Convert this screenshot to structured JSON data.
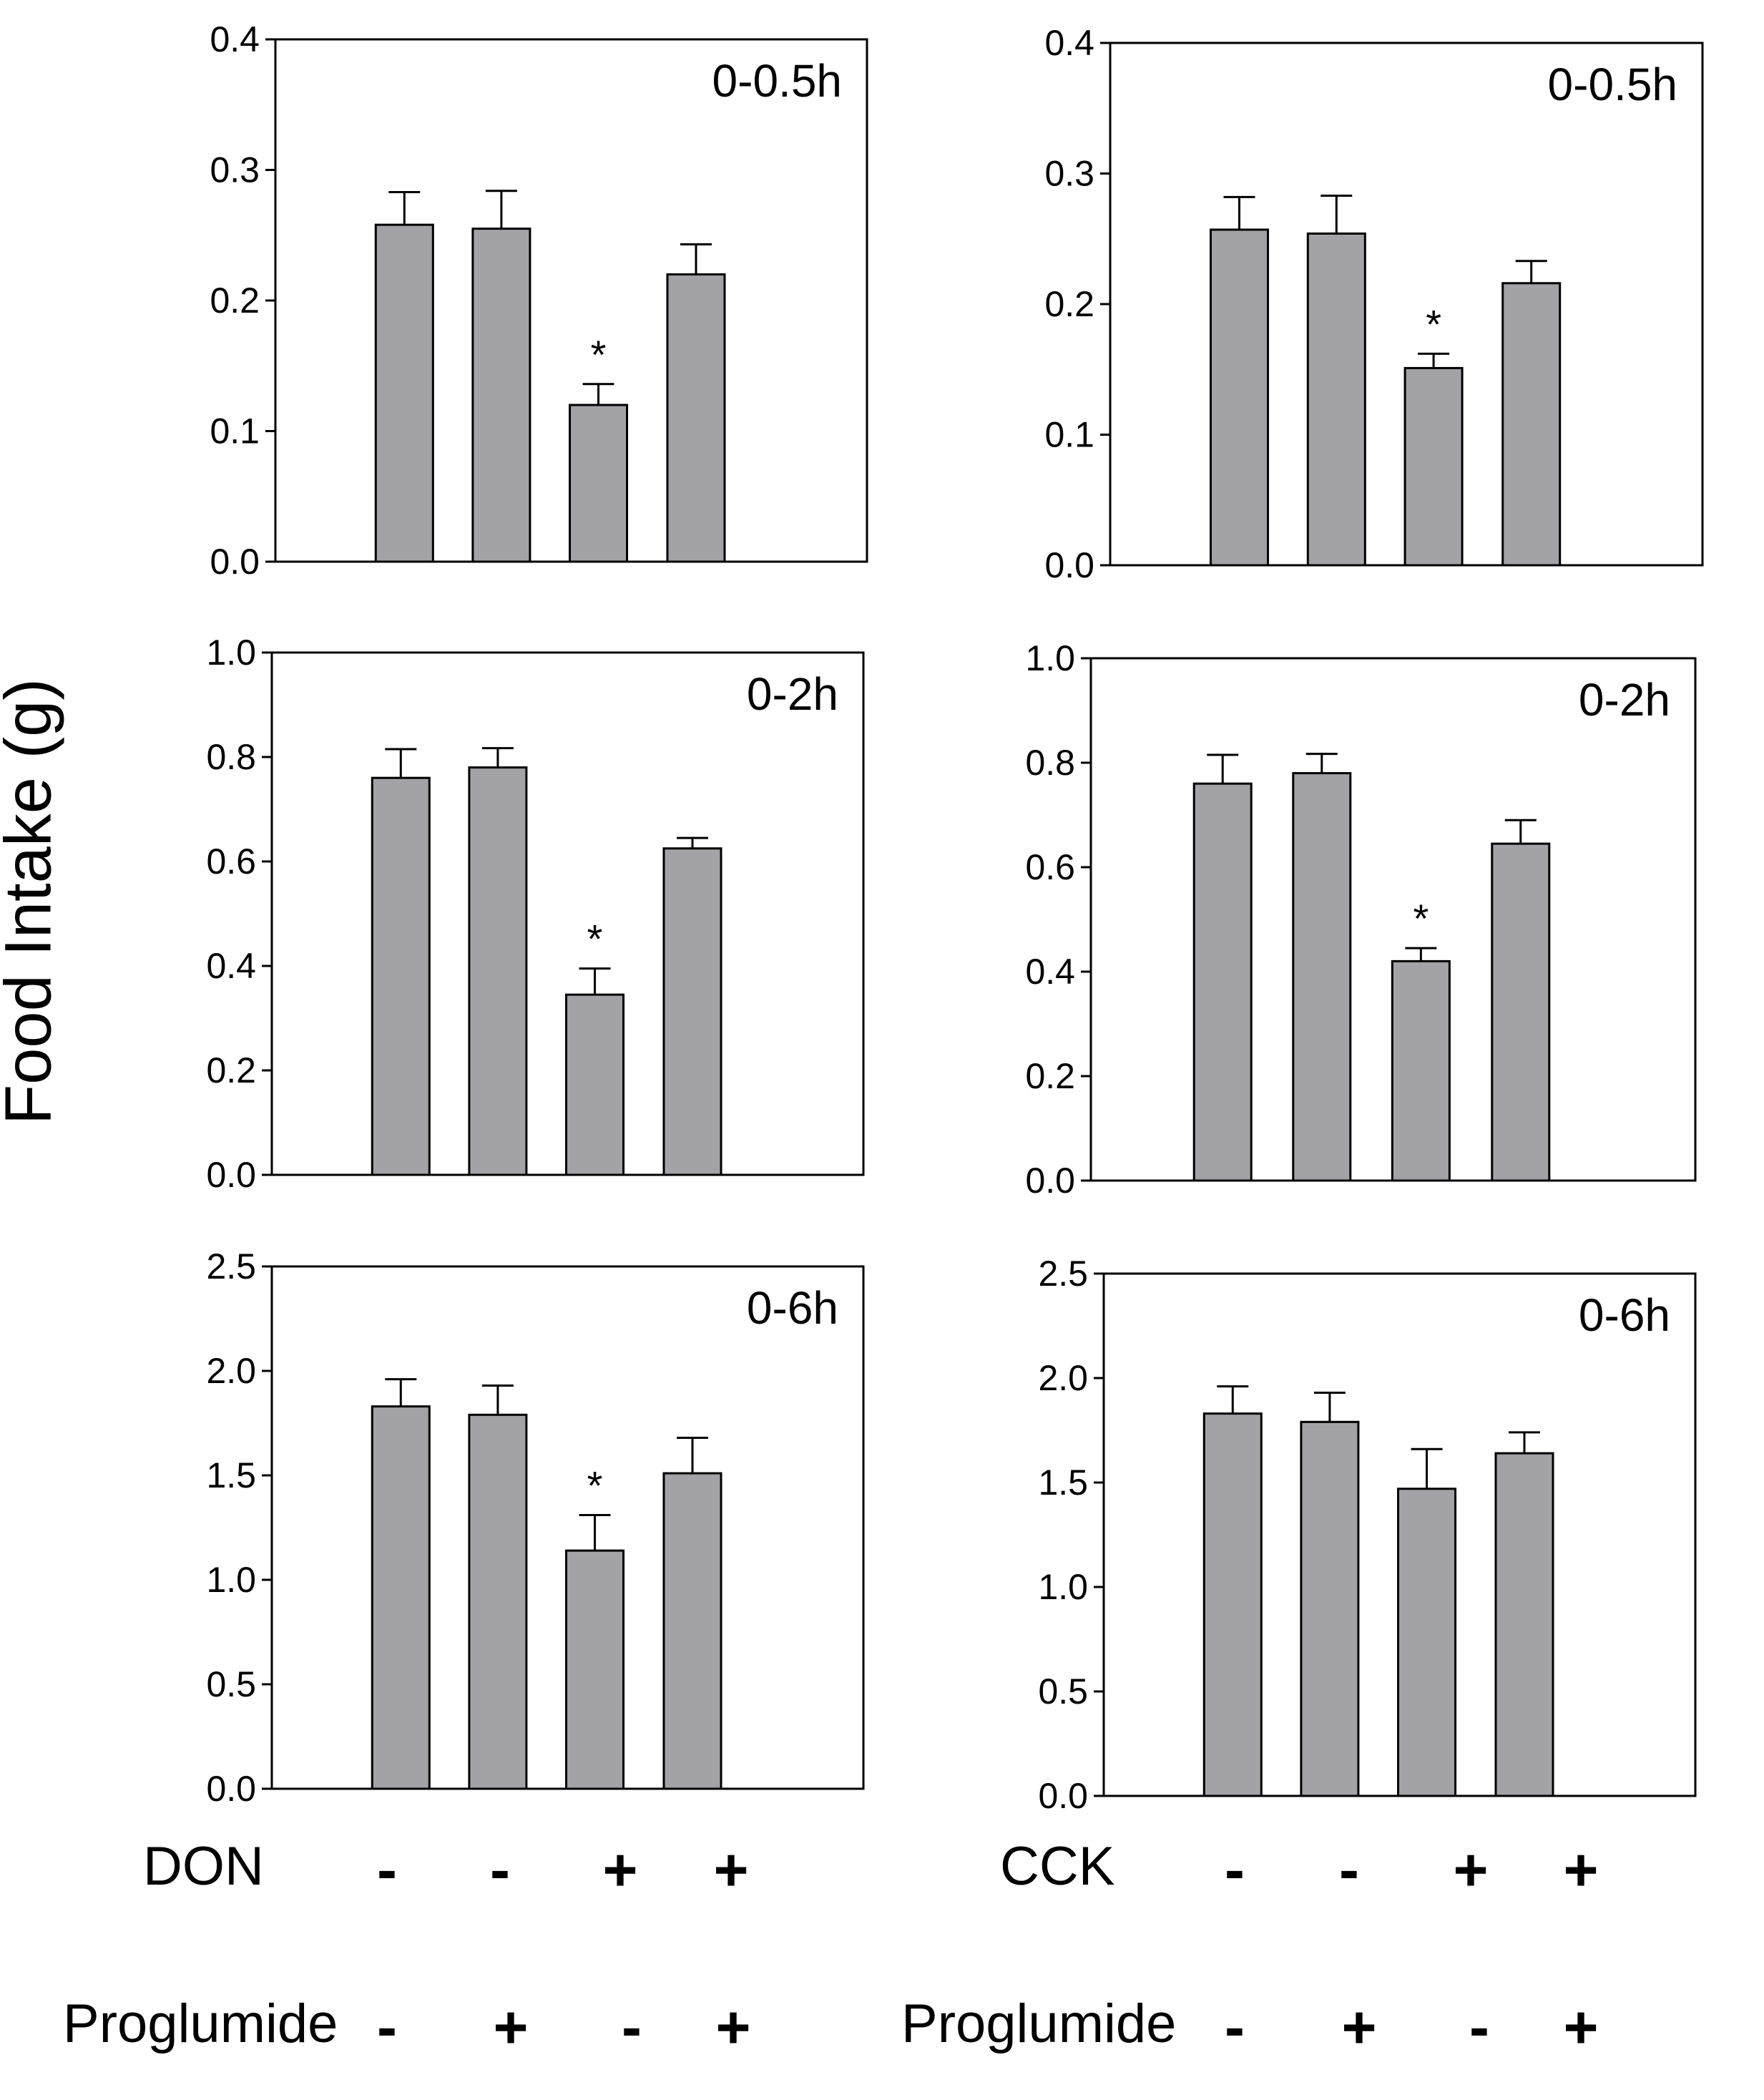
{
  "y_axis_label": "Food Intake (g)",
  "chart_data": [
    {
      "type": "bar",
      "column": "DON",
      "title": "0-0.5h",
      "categories": [
        "1",
        "2",
        "3",
        "4"
      ],
      "values": [
        0.258,
        0.255,
        0.12,
        0.22
      ],
      "errors": [
        0.025,
        0.029,
        0.016,
        0.023
      ],
      "significant": [
        false,
        false,
        true,
        false
      ],
      "ylim": [
        0,
        0.4
      ],
      "yticks": [
        "0.0",
        "0.1",
        "0.2",
        "0.3",
        "0.4"
      ]
    },
    {
      "type": "bar",
      "column": "CCK",
      "title": "0-0.5h",
      "categories": [
        "1",
        "2",
        "3",
        "4"
      ],
      "values": [
        0.257,
        0.254,
        0.151,
        0.216
      ],
      "errors": [
        0.025,
        0.029,
        0.011,
        0.017
      ],
      "significant": [
        false,
        false,
        true,
        false
      ],
      "ylim": [
        0,
        0.4
      ],
      "yticks": [
        "0.0",
        "0.1",
        "0.2",
        "0.3",
        "0.4"
      ]
    },
    {
      "type": "bar",
      "column": "DON",
      "title": "0-2h",
      "categories": [
        "1",
        "2",
        "3",
        "4"
      ],
      "values": [
        0.76,
        0.78,
        0.345,
        0.625
      ],
      "errors": [
        0.055,
        0.037,
        0.05,
        0.02
      ],
      "significant": [
        false,
        false,
        true,
        false
      ],
      "ylim": [
        0,
        1.0
      ],
      "yticks": [
        "0.0",
        "0.2",
        "0.4",
        "0.6",
        "0.8",
        "1.0"
      ]
    },
    {
      "type": "bar",
      "column": "CCK",
      "title": "0-2h",
      "categories": [
        "1",
        "2",
        "3",
        "4"
      ],
      "values": [
        0.76,
        0.78,
        0.42,
        0.645
      ],
      "errors": [
        0.055,
        0.037,
        0.025,
        0.045
      ],
      "significant": [
        false,
        false,
        true,
        false
      ],
      "ylim": [
        0,
        1.0
      ],
      "yticks": [
        "0.0",
        "0.2",
        "0.4",
        "0.6",
        "0.8",
        "1.0"
      ]
    },
    {
      "type": "bar",
      "column": "DON",
      "title": "0-6h",
      "categories": [
        "1",
        "2",
        "3",
        "4"
      ],
      "values": [
        1.83,
        1.79,
        1.14,
        1.51
      ],
      "errors": [
        0.13,
        0.14,
        0.17,
        0.17
      ],
      "significant": [
        false,
        false,
        true,
        false
      ],
      "ylim": [
        0,
        2.5
      ],
      "yticks": [
        "0.0",
        "0.5",
        "1.0",
        "1.5",
        "2.0",
        "2.5"
      ]
    },
    {
      "type": "bar",
      "column": "CCK",
      "title": "0-6h",
      "categories": [
        "1",
        "2",
        "3",
        "4"
      ],
      "values": [
        1.83,
        1.79,
        1.47,
        1.64
      ],
      "errors": [
        0.13,
        0.14,
        0.19,
        0.1
      ],
      "significant": [
        false,
        false,
        false,
        false
      ],
      "ylim": [
        0,
        2.5
      ],
      "yticks": [
        "0.0",
        "0.5",
        "1.0",
        "1.5",
        "2.0",
        "2.5"
      ]
    }
  ],
  "significance_marker": "*",
  "groups": {
    "left": {
      "row1": {
        "label": "DON",
        "signs": [
          "-",
          "-",
          "+",
          "+"
        ]
      },
      "row2": {
        "label": "Proglumide",
        "signs": [
          "-",
          "+",
          "-",
          "+"
        ]
      }
    },
    "right": {
      "row1": {
        "label": "CCK",
        "signs": [
          "-",
          "-",
          "+",
          "+"
        ]
      },
      "row2": {
        "label": "Proglumide",
        "signs": [
          "-",
          "+",
          "-",
          "+"
        ]
      }
    }
  },
  "colors": {
    "bar_fill": "#a3a2a7",
    "stroke": "#000000",
    "background": "#ffffff"
  }
}
